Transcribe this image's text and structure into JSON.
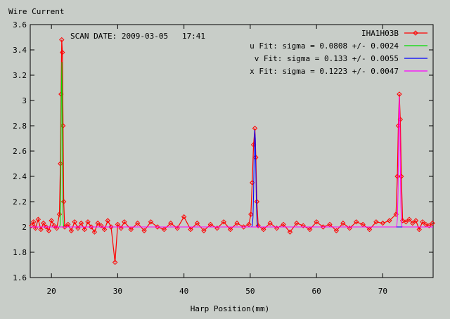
{
  "chart_data": {
    "type": "line",
    "title": "",
    "ylabel": "Wire Current",
    "xlabel": "Harp Position(mm)",
    "annotation": "SCAN DATE: 2009-03-05   17:41",
    "xlim": [
      16.8,
      77.6
    ],
    "ylim": [
      1.6,
      3.6
    ],
    "x_ticks": [
      20,
      30,
      40,
      50,
      60,
      70
    ],
    "y_ticks": [
      1.6,
      1.8,
      2.0,
      2.2,
      2.4,
      2.6,
      2.8,
      3.0,
      3.2,
      3.4,
      3.6
    ],
    "y_tick_labels": [
      "1.6",
      "1.8",
      "2",
      "2.2",
      "2.4",
      "2.6",
      "2.8",
      "3",
      "3.2",
      "3.4",
      "3.6"
    ],
    "grid": false,
    "legend_position": "top-right",
    "colors": {
      "background": "#c8cdc8",
      "data": "#ff0000",
      "u_fit": "#00dd00",
      "v_fit": "#0000ff",
      "x_fit": "#ff00ff"
    },
    "series": [
      {
        "name": "IHA1H03B",
        "color": "#ff0000",
        "style": "line-with-markers",
        "points": [
          [
            17.0,
            2.01
          ],
          [
            17.3,
            2.04
          ],
          [
            17.6,
            1.99
          ],
          [
            18.0,
            2.06
          ],
          [
            18.4,
            1.98
          ],
          [
            18.8,
            2.03
          ],
          [
            19.2,
            2.0
          ],
          [
            19.6,
            1.97
          ],
          [
            20.0,
            2.05
          ],
          [
            20.4,
            2.01
          ],
          [
            20.8,
            1.99
          ],
          [
            21.2,
            2.1
          ],
          [
            21.35,
            2.5
          ],
          [
            21.45,
            3.05
          ],
          [
            21.55,
            3.48
          ],
          [
            21.65,
            3.38
          ],
          [
            21.75,
            2.8
          ],
          [
            21.85,
            2.2
          ],
          [
            22.0,
            2.0
          ],
          [
            22.5,
            2.02
          ],
          [
            23.0,
            1.97
          ],
          [
            23.5,
            2.04
          ],
          [
            24.0,
            1.99
          ],
          [
            24.5,
            2.03
          ],
          [
            25.0,
            1.98
          ],
          [
            25.5,
            2.04
          ],
          [
            26.0,
            2.0
          ],
          [
            26.5,
            1.96
          ],
          [
            27.0,
            2.03
          ],
          [
            27.5,
            2.01
          ],
          [
            28.0,
            1.98
          ],
          [
            28.5,
            2.05
          ],
          [
            29.0,
            2.0
          ],
          [
            29.6,
            1.72
          ],
          [
            30.0,
            2.02
          ],
          [
            30.5,
            1.99
          ],
          [
            31.0,
            2.04
          ],
          [
            32.0,
            1.98
          ],
          [
            33.0,
            2.03
          ],
          [
            34.0,
            1.97
          ],
          [
            35.0,
            2.04
          ],
          [
            36.0,
            2.0
          ],
          [
            37.0,
            1.98
          ],
          [
            38.0,
            2.03
          ],
          [
            39.0,
            1.99
          ],
          [
            40.0,
            2.08
          ],
          [
            41.0,
            1.98
          ],
          [
            42.0,
            2.03
          ],
          [
            43.0,
            1.97
          ],
          [
            44.0,
            2.02
          ],
          [
            45.0,
            1.99
          ],
          [
            46.0,
            2.04
          ],
          [
            47.0,
            1.98
          ],
          [
            48.0,
            2.03
          ],
          [
            49.0,
            2.0
          ],
          [
            49.8,
            2.02
          ],
          [
            50.1,
            2.1
          ],
          [
            50.3,
            2.35
          ],
          [
            50.5,
            2.65
          ],
          [
            50.7,
            2.78
          ],
          [
            50.85,
            2.55
          ],
          [
            51.0,
            2.2
          ],
          [
            51.2,
            2.01
          ],
          [
            52.0,
            1.98
          ],
          [
            53.0,
            2.03
          ],
          [
            54.0,
            1.99
          ],
          [
            55.0,
            2.02
          ],
          [
            56.0,
            1.96
          ],
          [
            57.0,
            2.03
          ],
          [
            58.0,
            2.01
          ],
          [
            59.0,
            1.98
          ],
          [
            60.0,
            2.04
          ],
          [
            61.0,
            2.0
          ],
          [
            62.0,
            2.02
          ],
          [
            63.0,
            1.97
          ],
          [
            64.0,
            2.03
          ],
          [
            65.0,
            1.99
          ],
          [
            66.0,
            2.04
          ],
          [
            67.0,
            2.02
          ],
          [
            68.0,
            1.98
          ],
          [
            69.0,
            2.04
          ],
          [
            70.0,
            2.03
          ],
          [
            71.0,
            2.05
          ],
          [
            72.0,
            2.1
          ],
          [
            72.2,
            2.4
          ],
          [
            72.35,
            2.8
          ],
          [
            72.5,
            3.05
          ],
          [
            72.65,
            2.85
          ],
          [
            72.8,
            2.4
          ],
          [
            73.0,
            2.05
          ],
          [
            73.5,
            2.04
          ],
          [
            74.0,
            2.06
          ],
          [
            74.5,
            2.03
          ],
          [
            75.0,
            2.05
          ],
          [
            75.5,
            1.98
          ],
          [
            76.0,
            2.04
          ],
          [
            76.5,
            2.02
          ],
          [
            77.0,
            2.01
          ],
          [
            77.5,
            2.03
          ]
        ]
      },
      {
        "name": "u  Fit: sigma = 0.0808 +/- 0.0024",
        "color": "#00dd00",
        "fit": {
          "base": 2.0,
          "amp": 1.38,
          "mu": 21.55,
          "sigma": 0.0808
        }
      },
      {
        "name": "v  Fit: sigma = 0.133 +/- 0.0055",
        "color": "#0000ff",
        "fit": {
          "base": 2.0,
          "amp": 0.78,
          "mu": 50.7,
          "sigma": 0.133
        }
      },
      {
        "name": "x  Fit: sigma = 0.1223 +/- 0.0047",
        "color": "#ff00ff",
        "fit": {
          "base": 2.0,
          "amp": 1.05,
          "mu": 72.5,
          "sigma": 0.1223
        }
      }
    ]
  }
}
